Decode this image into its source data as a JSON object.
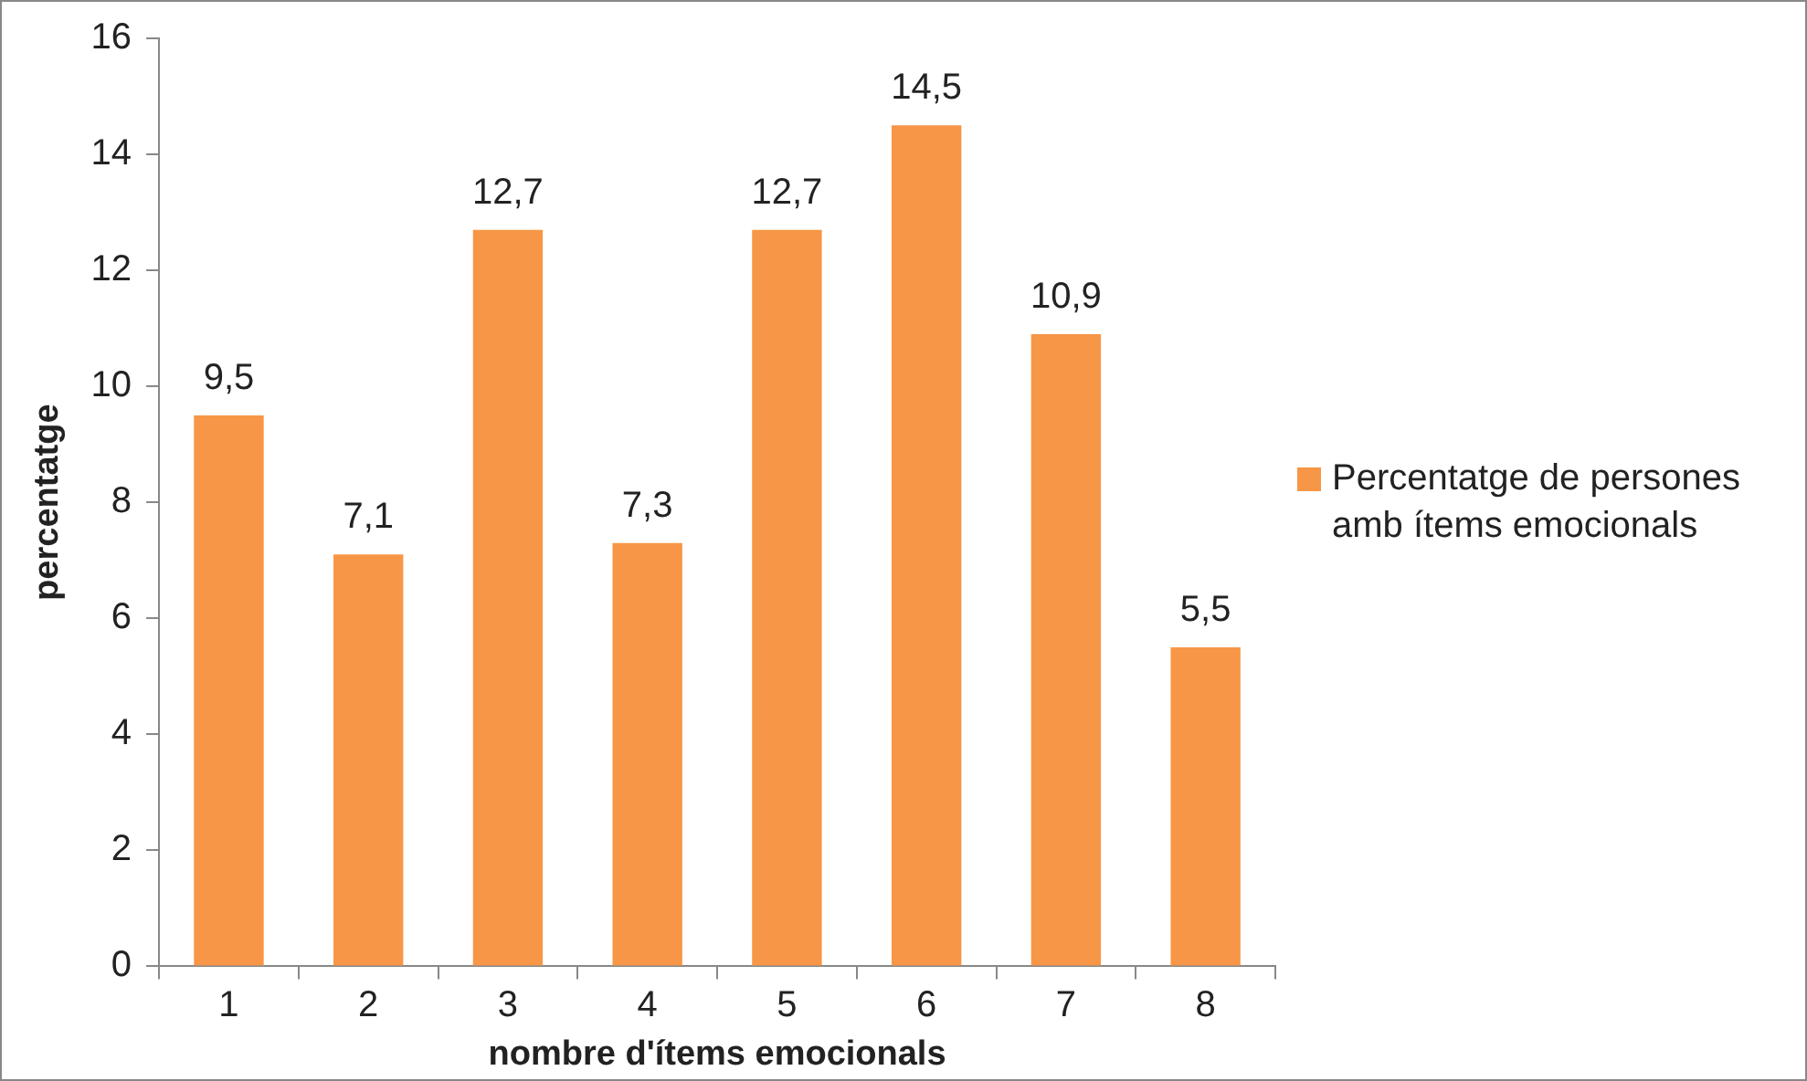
{
  "chart_data": {
    "type": "bar",
    "xlabel": "nombre d'ítems emocionals",
    "ylabel": "percentatge",
    "categories": [
      "1",
      "2",
      "3",
      "4",
      "5",
      "6",
      "7",
      "8"
    ],
    "series": [
      {
        "name": "Percentatge de persones amb ítems emocionals",
        "color": "#f79646",
        "values": [
          9.5,
          7.1,
          12.7,
          7.3,
          12.7,
          14.5,
          10.9,
          5.5
        ],
        "value_labels": [
          "9,5",
          "7,1",
          "12,7",
          "7,3",
          "12,7",
          "14,5",
          "10,9",
          "5,5"
        ]
      }
    ],
    "ylim": [
      0,
      16
    ],
    "yticks": [
      0,
      2,
      4,
      6,
      8,
      10,
      12,
      14,
      16
    ],
    "grid": false,
    "legend": "right"
  }
}
